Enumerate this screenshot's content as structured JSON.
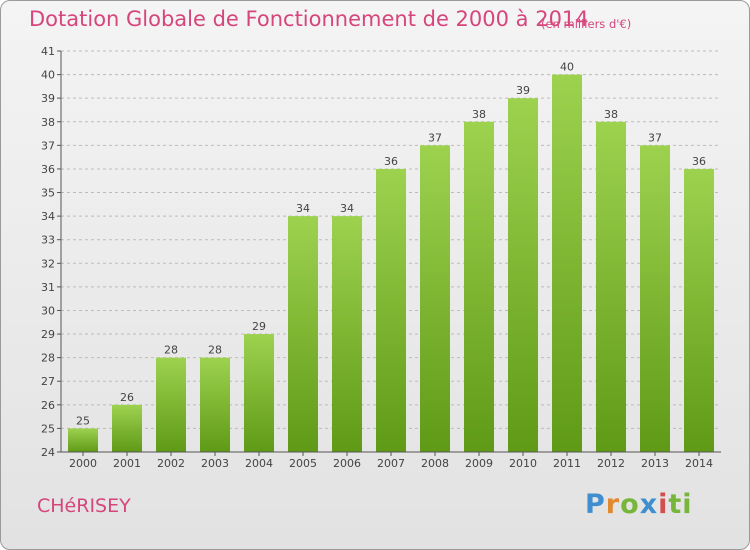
{
  "header": {
    "title": "Dotation Globale de Fonctionnement de 2000 à 2014",
    "unit": "(en milliers d'€)"
  },
  "footer": {
    "commune": "CHéRISEY",
    "logo_text": "Proxiti"
  },
  "colors": {
    "title": "#d6457c",
    "bar_light": "#9dd24f",
    "bar_dark": "#5f9a16",
    "grid": "#bcbcbc"
  },
  "chart_data": {
    "type": "bar",
    "title": "Dotation Globale de Fonctionnement de 2000 à 2014",
    "subtitle": "(en milliers d'€)",
    "xlabel": "",
    "ylabel": "",
    "categories": [
      "2000",
      "2001",
      "2002",
      "2003",
      "2004",
      "2005",
      "2006",
      "2007",
      "2008",
      "2009",
      "2010",
      "2011",
      "2012",
      "2013",
      "2014"
    ],
    "values": [
      25,
      26,
      28,
      28,
      29,
      34,
      34,
      36,
      37,
      38,
      39,
      40,
      38,
      37,
      36
    ],
    "ylim": [
      24,
      41
    ],
    "yticks": [
      24,
      25,
      26,
      27,
      28,
      29,
      30,
      31,
      32,
      33,
      34,
      35,
      36,
      37,
      38,
      39,
      40,
      41
    ],
    "grid": true,
    "grid_style": "dashed horizontal",
    "data_labels": true
  }
}
